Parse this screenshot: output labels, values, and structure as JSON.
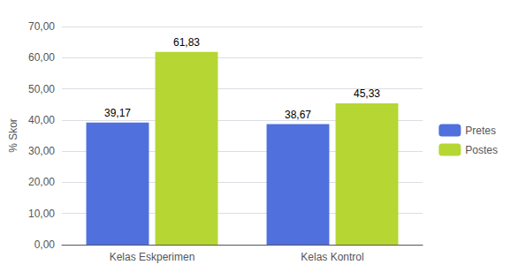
{
  "chart_data": {
    "type": "bar",
    "categories": [
      "Kelas Eskperimen",
      "Kelas Kontrol"
    ],
    "series": [
      {
        "name": "Pretes",
        "values": [
          39.17,
          38.67
        ],
        "value_labels": [
          "39,17",
          "38,67"
        ]
      },
      {
        "name": "Postes",
        "values": [
          61.83,
          45.33
        ],
        "value_labels": [
          "61,83",
          "45,33"
        ]
      }
    ],
    "ylabel": "% Skor",
    "ylim": [
      0,
      70
    ],
    "yticks": [
      {
        "value": 0,
        "label": "0,00"
      },
      {
        "value": 10,
        "label": "10,00"
      },
      {
        "value": 20,
        "label": "20,00"
      },
      {
        "value": 30,
        "label": "30,00"
      },
      {
        "value": 40,
        "label": "40,00"
      },
      {
        "value": 50,
        "label": "50,00"
      },
      {
        "value": 60,
        "label": "60,00"
      },
      {
        "value": 70,
        "label": "70,00"
      }
    ],
    "grid": true,
    "legend": "right",
    "data_labels": true
  }
}
